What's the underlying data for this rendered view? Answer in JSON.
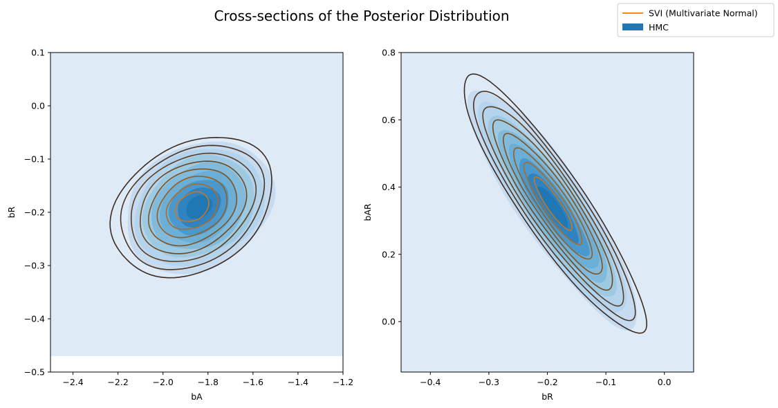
{
  "figure": {
    "title": "Cross-sections of the Posterior Distribution",
    "legend": {
      "placement": "top-right",
      "items": [
        {
          "label": "SVI (Multivariate Normal)",
          "kind": "line",
          "color": "#f28a1f"
        },
        {
          "label": "HMC",
          "kind": "patch",
          "color": "#1f77b4"
        }
      ]
    }
  },
  "chart_data": [
    {
      "type": "contour",
      "xlabel": "bA",
      "ylabel": "bR",
      "xlim": [
        -2.5,
        -1.2
      ],
      "ylim": [
        -0.5,
        0.1
      ],
      "xticks": [
        "−2.4",
        "−2.2",
        "−2.0",
        "−1.8",
        "−1.6",
        "−1.4",
        "−1.2"
      ],
      "xtick_values": [
        -2.4,
        -2.2,
        -2.0,
        -1.8,
        -1.6,
        -1.4,
        -1.2
      ],
      "yticks": [
        "−0.5",
        "−0.4",
        "−0.3",
        "−0.2",
        "−0.1",
        "0.0",
        "0.1"
      ],
      "ytick_values": [
        -0.5,
        -0.4,
        -0.3,
        -0.2,
        -0.1,
        0.0,
        0.1
      ],
      "hmc_fill_ylim": [
        -0.47,
        0.1
      ],
      "series": [
        {
          "name": "SVI (Multivariate Normal)",
          "kind": "contour-lines",
          "center": [
            -1.87,
            -0.19
          ],
          "rx": 0.56,
          "ry": 0.124,
          "angle_deg": 26,
          "levels": 8
        },
        {
          "name": "HMC",
          "kind": "filled-density",
          "center": [
            -1.84,
            -0.19
          ],
          "rx": 0.55,
          "ry": 0.13,
          "angle_deg": 26,
          "levels": 8
        }
      ]
    },
    {
      "type": "contour",
      "xlabel": "bR",
      "ylabel": "bAR",
      "xlim": [
        -0.45,
        0.05
      ],
      "ylim": [
        -0.15,
        0.8
      ],
      "xticks": [
        "−0.4",
        "−0.3",
        "−0.2",
        "−0.1",
        "0.0"
      ],
      "xtick_values": [
        -0.4,
        -0.3,
        -0.2,
        -0.1,
        0.0
      ],
      "yticks": [
        "0.0",
        "0.2",
        "0.4",
        "0.6",
        "0.8"
      ],
      "ytick_values": [
        0.0,
        0.2,
        0.4,
        0.6,
        0.8
      ],
      "hmc_fill_ylim": [
        -0.15,
        0.8
      ],
      "series": [
        {
          "name": "SVI (Multivariate Normal)",
          "kind": "contour-lines",
          "center": [
            -0.19,
            0.35
          ],
          "rx": 0.37,
          "ry": 0.105,
          "angle_deg": -53,
          "levels": 8
        },
        {
          "name": "HMC",
          "kind": "filled-density",
          "center": [
            -0.19,
            0.34
          ],
          "rx": 0.37,
          "ry": 0.12,
          "angle_deg": -53,
          "levels": 8
        }
      ]
    }
  ]
}
